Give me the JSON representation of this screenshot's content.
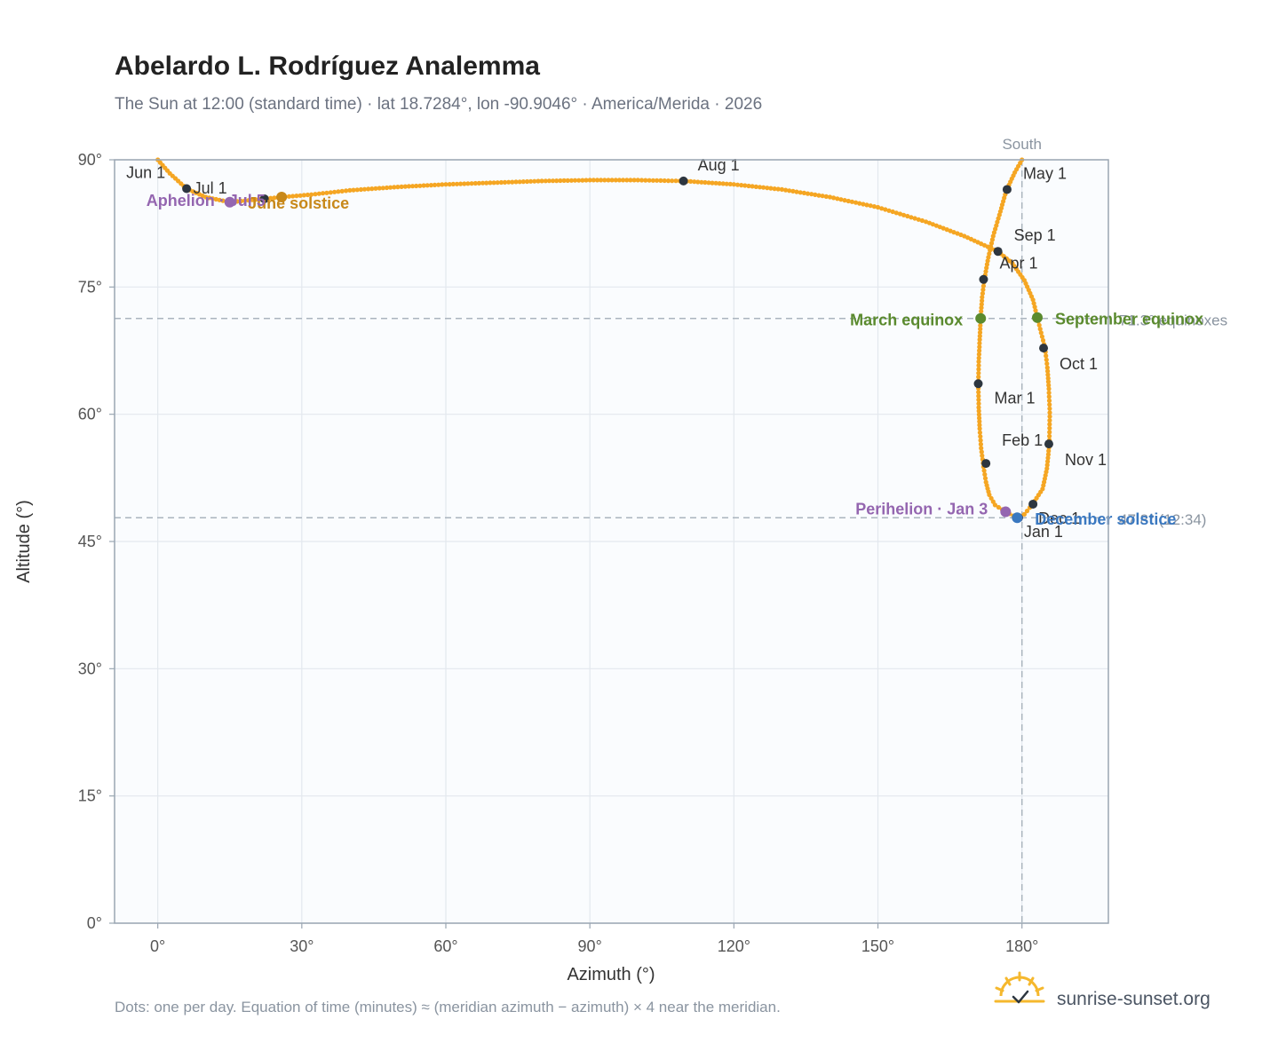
{
  "header": {
    "title": "Abelardo L. Rodríguez Analemma",
    "subtitle": "The Sun at 12:00 (standard time) · lat 18.7284°, lon -90.9046° · America/Merida · 2026"
  },
  "footer": {
    "note": "Dots: one per day. Equation of time (minutes) ≈ (meridian azimuth − azimuth) × 4 near the meridian.",
    "brand": "sunrise-sunset.org"
  },
  "colors": {
    "curve": "#f5a623",
    "month_dot": "#2d3640",
    "equinox": "#5a8a2e",
    "solstice_june": "#c8891a",
    "solstice_dec": "#3a78c0",
    "apsis": "#9466b0",
    "frame": "#9aa6b2",
    "grid": "#e3e8ee",
    "plot_bg": "#fafcfe"
  },
  "chart_data": {
    "type": "scatter",
    "xlabel": "Azimuth (°)",
    "ylabel": "Altitude (°)",
    "xlim": [
      -9,
      198
    ],
    "ylim": [
      0,
      90
    ],
    "x_ticks": [
      0,
      30,
      60,
      90,
      120,
      150,
      180
    ],
    "y_ticks": [
      0,
      15,
      30,
      45,
      60,
      75,
      90
    ],
    "x_tick_labels": [
      "0°",
      "30°",
      "60°",
      "90°",
      "120°",
      "150°",
      "180°"
    ],
    "y_tick_labels": [
      "0°",
      "15°",
      "30°",
      "45°",
      "60°",
      "75°",
      "90°"
    ],
    "grid": true,
    "meridian": {
      "azimuth": 180,
      "label": "South"
    },
    "reference_lines": [
      {
        "altitude": 71.3,
        "label": "71.3° equinoxes"
      },
      {
        "altitude": 47.8,
        "label": "47.8° (12:34)"
      }
    ],
    "path_points": [
      [
        179.0,
        47.8
      ],
      [
        176.6,
        48.5
      ],
      [
        174.4,
        49.3
      ],
      [
        173.2,
        50.5
      ],
      [
        172.5,
        52.0
      ],
      [
        172.0,
        53.8
      ],
      [
        171.5,
        56.0
      ],
      [
        171.2,
        58.3
      ],
      [
        171.0,
        60.8
      ],
      [
        170.9,
        63.5
      ],
      [
        171.0,
        66.2
      ],
      [
        171.2,
        68.8
      ],
      [
        171.4,
        71.3
      ],
      [
        171.7,
        73.8
      ],
      [
        172.2,
        76.0
      ],
      [
        173.0,
        78.5
      ],
      [
        174.0,
        81.0
      ],
      [
        175.3,
        83.5
      ],
      [
        176.7,
        86.3
      ],
      [
        178.5,
        88.5
      ],
      [
        180.0,
        90.0
      ],
      [
        181.5,
        91.5
      ],
      [
        0.0,
        90.0
      ],
      [
        2.5,
        88.4
      ],
      [
        6.0,
        86.6
      ],
      [
        10.0,
        85.6
      ],
      [
        15.0,
        85.0
      ],
      [
        22.0,
        85.4
      ],
      [
        25.8,
        85.6
      ],
      [
        32.0,
        85.9
      ],
      [
        40.0,
        86.4
      ],
      [
        50.0,
        86.8
      ],
      [
        60.0,
        87.1
      ],
      [
        70.0,
        87.3
      ],
      [
        80.0,
        87.5
      ],
      [
        90.0,
        87.6
      ],
      [
        100.0,
        87.6
      ],
      [
        109.5,
        87.5
      ],
      [
        120.0,
        87.1
      ],
      [
        130.0,
        86.5
      ],
      [
        140.0,
        85.6
      ],
      [
        150.0,
        84.4
      ],
      [
        160.0,
        82.7
      ],
      [
        168.0,
        81.0
      ],
      [
        175.0,
        79.2
      ],
      [
        178.0,
        77.8
      ],
      [
        180.5,
        75.8
      ],
      [
        182.3,
        73.5
      ],
      [
        183.2,
        71.4
      ],
      [
        184.0,
        69.6
      ],
      [
        184.8,
        67.8
      ],
      [
        185.3,
        65.5
      ],
      [
        185.6,
        63.0
      ],
      [
        185.8,
        60.2
      ],
      [
        185.7,
        56.5
      ],
      [
        185.2,
        53.6
      ],
      [
        184.3,
        51.2
      ],
      [
        182.2,
        49.4
      ],
      [
        180.5,
        48.2
      ],
      [
        179.0,
        47.8
      ]
    ],
    "month_points": [
      {
        "label": "Jan 1",
        "x": 179.3,
        "y": 47.8
      },
      {
        "label": "Feb 1",
        "x": 172.5,
        "y": 54.2
      },
      {
        "label": "Mar 1",
        "x": 170.9,
        "y": 63.6
      },
      {
        "label": "Apr 1",
        "x": 172.0,
        "y": 75.9
      },
      {
        "label": "May 1",
        "x": 176.9,
        "y": 86.5
      },
      {
        "label": "Jun 1",
        "x": 6.0,
        "y": 86.6
      },
      {
        "label": "Jul 1",
        "x": 22.2,
        "y": 85.4
      },
      {
        "label": "Aug 1",
        "x": 109.5,
        "y": 87.5
      },
      {
        "label": "Sep 1",
        "x": 175.0,
        "y": 79.2
      },
      {
        "label": "Oct 1",
        "x": 184.5,
        "y": 67.8
      },
      {
        "label": "Nov 1",
        "x": 185.6,
        "y": 56.5
      },
      {
        "label": "Dec 1",
        "x": 182.3,
        "y": 49.4
      }
    ],
    "events": [
      {
        "label": "March equinox",
        "x": 171.4,
        "y": 71.3,
        "kind": "equinox"
      },
      {
        "label": "September equinox",
        "x": 183.2,
        "y": 71.4,
        "kind": "equinox"
      },
      {
        "label": "June solstice",
        "x": 25.8,
        "y": 85.6,
        "kind": "solstice_june"
      },
      {
        "label": "December solstice",
        "x": 179.0,
        "y": 47.8,
        "kind": "solstice_dec"
      },
      {
        "label": "Perihelion · Jan 3",
        "x": 176.6,
        "y": 48.5,
        "kind": "apsis"
      },
      {
        "label": "Aphelion · Jul 5",
        "x": 15.0,
        "y": 85.0,
        "kind": "apsis"
      }
    ]
  }
}
